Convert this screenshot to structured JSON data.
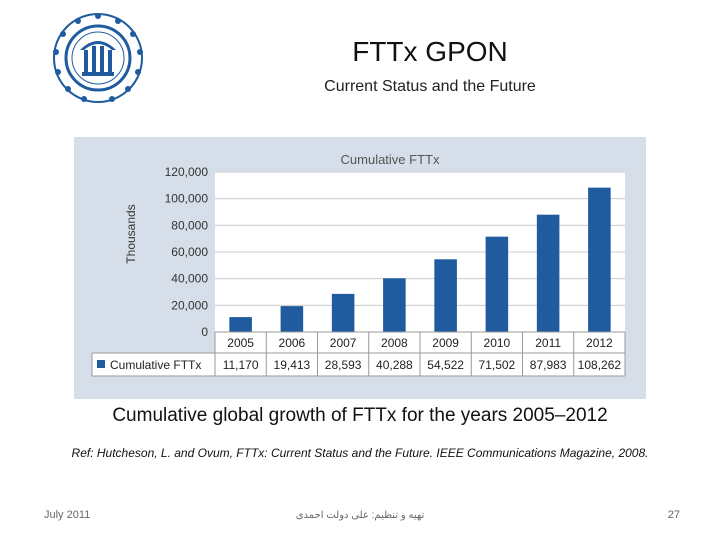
{
  "slide": {
    "title": "FTTx GPON",
    "subtitle": "Current Status and the Future",
    "caption": "Cumulative global growth of FTTx for the years 2005–2012",
    "reference": "Ref: Hutcheson, L. and Ovum, FTTx: Current Status and the Future. IEEE  Communications Magazine, 2008.",
    "footer_left": "July 2011",
    "footer_center": "تهیه و تنظیم: علی دولت احمدی",
    "page_number": "27",
    "logo_icon": "university-seal-icon",
    "colors": {
      "bar": "#1f5b9e",
      "frame": "#d6dfe9",
      "plot": "#ffffff"
    }
  },
  "chart_data": {
    "type": "bar",
    "title": "Cumulative FTTx",
    "ylabel": "Thousands",
    "xlabel": "",
    "categories": [
      "2005",
      "2006",
      "2007",
      "2008",
      "2009",
      "2010",
      "2011",
      "2012"
    ],
    "series": [
      {
        "name": "Cumulative FTTx",
        "values": [
          11170,
          19413,
          28593,
          40288,
          54522,
          71502,
          87983,
          108262
        ],
        "labels": [
          "11,170",
          "19,413",
          "28,593",
          "40,288",
          "54,522",
          "71,502",
          "87,983",
          "108,262"
        ]
      }
    ],
    "ylim": [
      0,
      120000
    ],
    "yticks": [
      0,
      20000,
      40000,
      60000,
      80000,
      100000,
      120000
    ],
    "ytick_labels": [
      "0",
      "20,000",
      "40,000",
      "60,000",
      "80,000",
      "100,000",
      "120,000"
    ],
    "grid": true,
    "legend": "data-table"
  }
}
